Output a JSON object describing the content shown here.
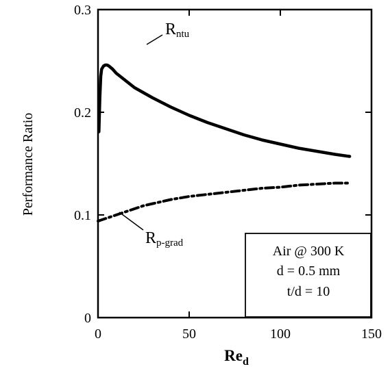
{
  "chart_data": {
    "type": "line",
    "xlabel_main": "Re",
    "xlabel_sub": "d",
    "ylabel": "Performance Ratio",
    "xlim": [
      0,
      150
    ],
    "ylim": [
      0,
      0.3
    ],
    "xticks": [
      "0",
      "50",
      "100",
      "150"
    ],
    "yticks": [
      "0",
      "0.1",
      "0.2",
      "0.3"
    ],
    "grid": false,
    "series": [
      {
        "name_main": "R",
        "name_sub": "ntu",
        "style": "solid",
        "color": "#000000",
        "x": [
          0.5,
          1,
          1.5,
          2,
          3,
          4,
          5,
          6,
          8,
          10,
          15,
          20,
          25,
          30,
          40,
          50,
          60,
          70,
          80,
          90,
          100,
          110,
          120,
          130,
          138
        ],
        "y": [
          0.181,
          0.215,
          0.235,
          0.242,
          0.245,
          0.246,
          0.246,
          0.245,
          0.242,
          0.238,
          0.231,
          0.224,
          0.219,
          0.214,
          0.205,
          0.197,
          0.19,
          0.184,
          0.178,
          0.173,
          0.169,
          0.165,
          0.162,
          0.159,
          0.157
        ]
      },
      {
        "name_main": "R",
        "name_sub": "p-grad",
        "style": "dash-dot",
        "color": "#000000",
        "x": [
          0,
          5,
          10,
          15,
          20,
          25,
          30,
          35,
          40,
          50,
          60,
          70,
          80,
          90,
          100,
          110,
          120,
          130,
          138
        ],
        "y": [
          0.094,
          0.097,
          0.1,
          0.103,
          0.106,
          0.109,
          0.111,
          0.113,
          0.115,
          0.118,
          0.12,
          0.122,
          0.124,
          0.126,
          0.127,
          0.129,
          0.13,
          0.131,
          0.131
        ]
      }
    ],
    "annotation_box": [
      "Air @ 300 K",
      "d = 0.5 mm",
      "t/d = 10"
    ]
  }
}
